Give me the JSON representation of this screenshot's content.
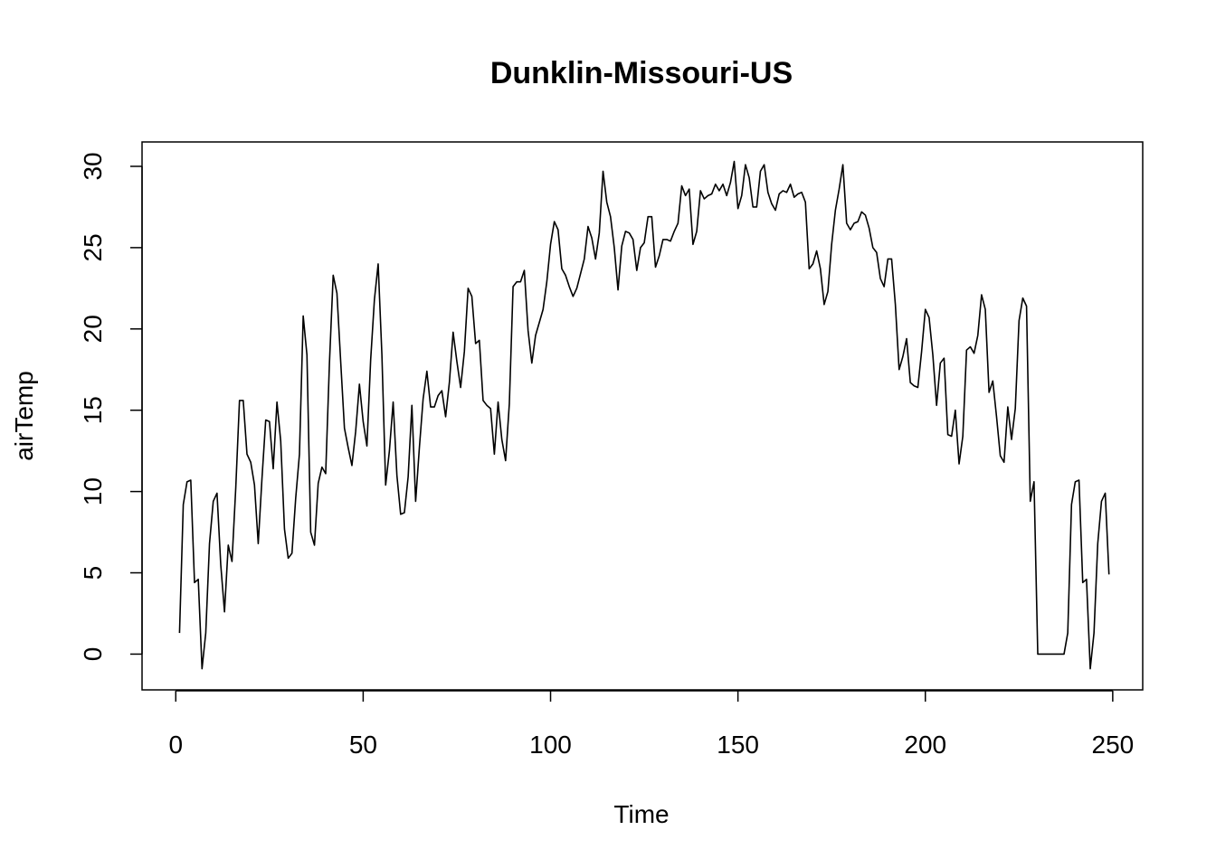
{
  "chart_data": {
    "type": "line",
    "title": "Dunklin-Missouri-US",
    "xlabel": "Time",
    "ylabel": "airTemp",
    "xlim": [
      -9,
      258
    ],
    "ylim": [
      -2.2,
      31.5
    ],
    "x_ticks": [
      0,
      50,
      100,
      150,
      200,
      250
    ],
    "y_ticks": [
      0,
      5,
      10,
      15,
      20,
      25,
      30
    ],
    "x_tick_labels": [
      "0",
      "50",
      "100",
      "150",
      "200",
      "250"
    ],
    "y_tick_labels": [
      "0",
      "5",
      "10",
      "15",
      "20",
      "25",
      "30"
    ],
    "grid": false,
    "color": "#000000",
    "series": [
      {
        "x_start": 1,
        "values": [
          1.3,
          9.2,
          10.6,
          10.7,
          4.4,
          4.6,
          -0.9,
          1.3,
          6.8,
          9.4,
          9.9,
          5.5,
          2.6,
          6.7,
          5.7,
          10.2,
          15.6,
          15.6,
          12.3,
          11.8,
          10.4,
          6.8,
          10.8,
          14.4,
          14.3,
          11.4,
          15.5,
          13.1,
          7.7,
          5.9,
          6.2,
          9.6,
          12.3,
          20.8,
          18.4,
          7.5,
          6.7,
          10.5,
          11.5,
          11.1,
          17.9,
          23.3,
          22.2,
          18.0,
          13.9,
          12.7,
          11.6,
          13.7,
          16.6,
          14.3,
          12.8,
          18.1,
          21.8,
          24.0,
          18.4,
          10.4,
          12.5,
          15.5,
          11.0,
          8.6,
          8.7,
          10.9,
          15.3,
          9.4,
          12.7,
          15.7,
          17.4,
          15.2,
          15.2,
          15.9,
          16.2,
          14.6,
          16.7,
          19.8,
          18.0,
          16.4,
          18.6,
          22.5,
          22.0,
          19.1,
          19.3,
          15.6,
          15.3,
          15.1,
          12.3,
          15.5,
          13.2,
          11.9,
          15.4,
          22.6,
          22.9,
          22.9,
          23.6,
          19.9,
          17.9,
          19.6,
          20.4,
          21.2,
          22.9,
          25.2,
          26.6,
          26.1,
          23.7,
          23.3,
          22.6,
          22.0,
          22.5,
          23.4,
          24.3,
          26.3,
          25.6,
          24.3,
          25.9,
          29.7,
          27.8,
          26.9,
          25.0,
          22.4,
          25.1,
          26.0,
          25.9,
          25.5,
          23.6,
          25.0,
          25.3,
          26.9,
          26.9,
          23.8,
          24.5,
          25.5,
          25.5,
          25.4,
          26.0,
          26.5,
          28.8,
          28.2,
          28.6,
          25.2,
          26.0,
          28.5,
          28.0,
          28.2,
          28.3,
          28.9,
          28.5,
          28.9,
          28.2,
          29.0,
          30.3,
          27.4,
          28.2,
          30.1,
          29.3,
          27.5,
          27.5,
          29.7,
          30.1,
          28.4,
          27.7,
          27.3,
          28.3,
          28.5,
          28.4,
          28.9,
          28.1,
          28.3,
          28.4,
          27.8,
          23.7,
          24.0,
          24.8,
          23.7,
          21.5,
          22.3,
          25.2,
          27.3,
          28.6,
          30.1,
          26.5,
          26.1,
          26.5,
          26.6,
          27.2,
          27.0,
          26.2,
          25.0,
          24.7,
          23.1,
          22.6,
          24.3,
          24.3,
          21.5,
          17.5,
          18.3,
          19.4,
          16.7,
          16.5,
          16.4,
          18.6,
          21.2,
          20.7,
          18.4,
          15.3,
          17.9,
          18.2,
          13.5,
          13.4,
          15.0,
          11.7,
          13.4,
          18.7,
          18.9,
          18.5,
          19.6,
          22.1,
          21.2,
          16.1,
          16.8,
          14.6,
          12.2,
          11.8,
          15.2,
          13.2,
          15.1,
          20.5,
          21.9,
          21.4,
          9.4,
          10.6,
          0.0,
          0.0,
          0.0,
          0.0,
          0.0,
          0.0,
          0.0,
          0.0,
          1.3,
          9.2,
          10.6,
          10.7,
          4.4,
          4.6,
          -0.9,
          1.3,
          6.8,
          9.4,
          9.9,
          4.9
        ]
      }
    ]
  }
}
